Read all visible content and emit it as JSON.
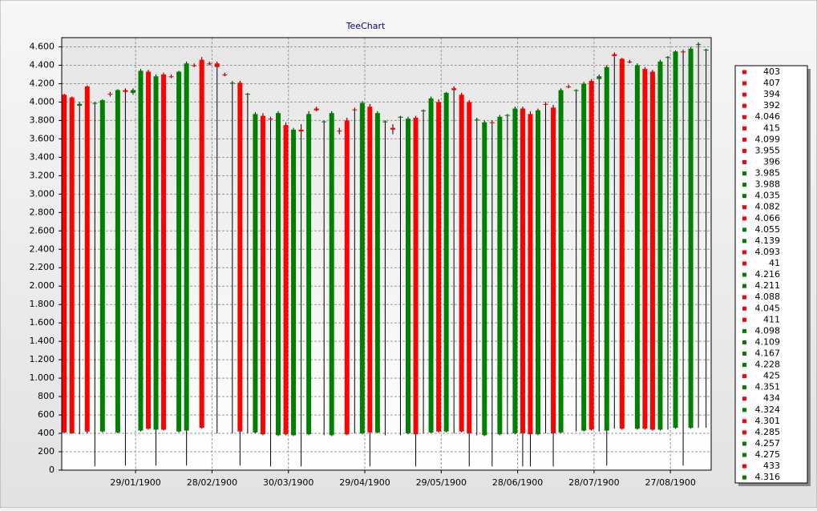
{
  "chart_data": {
    "type": "candlestick",
    "title": "TeeChart",
    "up_color": "#008000",
    "down_color": "#ff0000",
    "wick_color": "#000000",
    "grid": true,
    "xlim": [
      0,
      255
    ],
    "xticks": [
      {
        "value": 29,
        "label": "29/01/1900"
      },
      {
        "value": 59,
        "label": "28/02/1900"
      },
      {
        "value": 89,
        "label": "30/03/1900"
      },
      {
        "value": 119,
        "label": "29/04/1900"
      },
      {
        "value": 149,
        "label": "29/05/1900"
      },
      {
        "value": 179,
        "label": "28/06/1900"
      },
      {
        "value": 209,
        "label": "28/07/1900"
      },
      {
        "value": 239,
        "label": "27/08/1900"
      }
    ],
    "ylim": [
      0,
      4700
    ],
    "yticks": [
      0,
      200,
      400,
      600,
      800,
      {
        "value": 1000,
        "label": "1.000"
      },
      {
        "value": 1200,
        "label": "1.200"
      },
      {
        "value": 1400,
        "label": "1.400"
      },
      {
        "value": 1600,
        "label": "1.600"
      },
      {
        "value": 1800,
        "label": "1.800"
      },
      {
        "value": 2000,
        "label": "2.000"
      },
      {
        "value": 2200,
        "label": "2.200"
      },
      {
        "value": 2400,
        "label": "2.400"
      },
      {
        "value": 2600,
        "label": "2.600"
      },
      {
        "value": 2800,
        "label": "2.800"
      },
      {
        "value": 3000,
        "label": "3.000"
      },
      {
        "value": 3200,
        "label": "3.200"
      },
      {
        "value": 3400,
        "label": "3.400"
      },
      {
        "value": 3600,
        "label": "3.600"
      },
      {
        "value": 3800,
        "label": "3.800"
      },
      {
        "value": 4000,
        "label": "4.000"
      },
      {
        "value": 4200,
        "label": "4.200"
      },
      {
        "value": 4400,
        "label": "4.400"
      },
      {
        "value": 4600,
        "label": "4.600"
      }
    ],
    "x": [
      1,
      4,
      7,
      10,
      13,
      16,
      19,
      22,
      25,
      28,
      31,
      34,
      37,
      40,
      43,
      46,
      49,
      52,
      55,
      58,
      61,
      64,
      67,
      70,
      73,
      76,
      79,
      82,
      85,
      88,
      91,
      94,
      97,
      100,
      103,
      106,
      109,
      112,
      115,
      118,
      121,
      124,
      127,
      130,
      133,
      136,
      139,
      142,
      145,
      148,
      151,
      154,
      157,
      160,
      163,
      166,
      169,
      172,
      175,
      178,
      181,
      184,
      187,
      190,
      193,
      196,
      199,
      202,
      205,
      208,
      211,
      214,
      217,
      220,
      223,
      226,
      229,
      232,
      235,
      238,
      241,
      244,
      247,
      250,
      253
    ],
    "ohlc": [
      [
        4080,
        4090,
        400,
        410
      ],
      [
        4050,
        4060,
        395,
        400
      ],
      [
        3960,
        4000,
        390,
        3980
      ],
      [
        4170,
        4180,
        400,
        420
      ],
      [
        3980,
        4000,
        40,
        3990
      ],
      [
        420,
        4030,
        410,
        4020
      ],
      [
        4090,
        4110,
        4060,
        4080
      ],
      [
        410,
        4140,
        400,
        4130
      ],
      [
        4130,
        4150,
        50,
        4110
      ],
      [
        4100,
        4150,
        4080,
        4130
      ],
      [
        430,
        4360,
        420,
        4340
      ],
      [
        4330,
        4350,
        440,
        450
      ],
      [
        440,
        4300,
        50,
        4280
      ],
      [
        4300,
        4320,
        430,
        440
      ],
      [
        4280,
        4300,
        4260,
        4270
      ],
      [
        420,
        4340,
        410,
        4330
      ],
      [
        430,
        4440,
        50,
        4420
      ],
      [
        4400,
        4420,
        4380,
        4390
      ],
      [
        4460,
        4490,
        450,
        460
      ],
      [
        4420,
        4440,
        4400,
        4410
      ],
      [
        4420,
        4440,
        400,
        4380
      ],
      [
        4300,
        4320,
        4280,
        4290
      ],
      [
        4200,
        4230,
        400,
        4210
      ],
      [
        4210,
        4230,
        50,
        420
      ],
      [
        4080,
        4100,
        400,
        4090
      ],
      [
        410,
        3890,
        400,
        3870
      ],
      [
        3850,
        3880,
        380,
        390
      ],
      [
        3820,
        3840,
        40,
        3810
      ],
      [
        380,
        3900,
        370,
        3880
      ],
      [
        3750,
        3780,
        380,
        390
      ],
      [
        380,
        3720,
        370,
        3700
      ],
      [
        3700,
        3760,
        40,
        3680
      ],
      [
        390,
        3900,
        380,
        3870
      ],
      [
        3930,
        3950,
        3900,
        3910
      ],
      [
        3780,
        3800,
        380,
        3790
      ],
      [
        380,
        3900,
        370,
        3880
      ],
      [
        3690,
        3720,
        3650,
        3680
      ],
      [
        3800,
        3830,
        380,
        390
      ],
      [
        3920,
        3940,
        400,
        3910
      ],
      [
        400,
        4010,
        390,
        3990
      ],
      [
        3950,
        3980,
        40,
        410
      ],
      [
        410,
        3900,
        400,
        3880
      ],
      [
        3780,
        3800,
        380,
        3790
      ],
      [
        3720,
        3760,
        3650,
        3700
      ],
      [
        3830,
        3850,
        380,
        3840
      ],
      [
        400,
        3840,
        390,
        3820
      ],
      [
        3830,
        3850,
        40,
        390
      ],
      [
        3900,
        3920,
        400,
        3910
      ],
      [
        410,
        4060,
        400,
        4040
      ],
      [
        4000,
        4030,
        410,
        420
      ],
      [
        420,
        4110,
        410,
        4100
      ],
      [
        4150,
        4170,
        400,
        4130
      ],
      [
        4080,
        4100,
        410,
        420
      ],
      [
        4000,
        4020,
        40,
        400
      ],
      [
        3800,
        3830,
        380,
        3810
      ],
      [
        380,
        3800,
        370,
        3780
      ],
      [
        3780,
        3800,
        40,
        3770
      ],
      [
        390,
        3860,
        380,
        3840
      ],
      [
        3850,
        3870,
        390,
        3860
      ],
      [
        400,
        3950,
        390,
        3930
      ],
      [
        3930,
        3950,
        40,
        400
      ],
      [
        3870,
        3900,
        40,
        390
      ],
      [
        390,
        3930,
        380,
        3910
      ],
      [
        3980,
        4000,
        400,
        3970
      ],
      [
        3940,
        3970,
        40,
        400
      ],
      [
        410,
        4150,
        400,
        4130
      ],
      [
        4170,
        4190,
        4150,
        4160
      ],
      [
        4120,
        4140,
        420,
        4130
      ],
      [
        430,
        4220,
        420,
        4200
      ],
      [
        4230,
        4250,
        430,
        440
      ],
      [
        4250,
        4300,
        420,
        4280
      ],
      [
        430,
        4400,
        50,
        4380
      ],
      [
        4520,
        4540,
        450,
        4500
      ],
      [
        4470,
        4480,
        440,
        450
      ],
      [
        4440,
        4460,
        4420,
        4430
      ],
      [
        450,
        4420,
        440,
        4400
      ],
      [
        4360,
        4380,
        440,
        450
      ],
      [
        4330,
        4350,
        430,
        440
      ],
      [
        440,
        4460,
        430,
        4440
      ],
      [
        4480,
        4500,
        440,
        4490
      ],
      [
        460,
        4560,
        450,
        4550
      ],
      [
        4550,
        4570,
        50,
        4540
      ],
      [
        460,
        4600,
        450,
        4580
      ],
      [
        4620,
        4650,
        460,
        4630
      ],
      [
        4560,
        4580,
        460,
        4570
      ]
    ],
    "legend": {
      "labels": [
        "403",
        "407",
        "394",
        "392",
        "4.046",
        "415",
        "4.099",
        "3.955",
        "396",
        "3.985",
        "3.988",
        "4.035",
        "4.082",
        "4.066",
        "4.055",
        "4.139",
        "4.093",
        "41",
        "4.216",
        "4.211",
        "4.088",
        "4.045",
        "411",
        "4.098",
        "4.109",
        "4.167",
        "4.228",
        "425",
        "4.351",
        "434",
        "4.324",
        "4.301",
        "4.285",
        "4.257",
        "4.275",
        "433",
        "4.316"
      ],
      "colors": [
        "#ff0000",
        "#ff0000",
        "#ff0000",
        "#ff0000",
        "#ff0000",
        "#ff0000",
        "#ff0000",
        "#ff0000",
        "#ff0000",
        "#008000",
        "#008000",
        "#008000",
        "#ff0000",
        "#ff0000",
        "#008000",
        "#008000",
        "#ff0000",
        "#ff0000",
        "#008000",
        "#008000",
        "#ff0000",
        "#ff0000",
        "#ff0000",
        "#008000",
        "#008000",
        "#008000",
        "#008000",
        "#ff0000",
        "#008000",
        "#ff0000",
        "#008000",
        "#ff0000",
        "#ff0000",
        "#008000",
        "#008000",
        "#ff0000",
        "#008000"
      ]
    }
  }
}
